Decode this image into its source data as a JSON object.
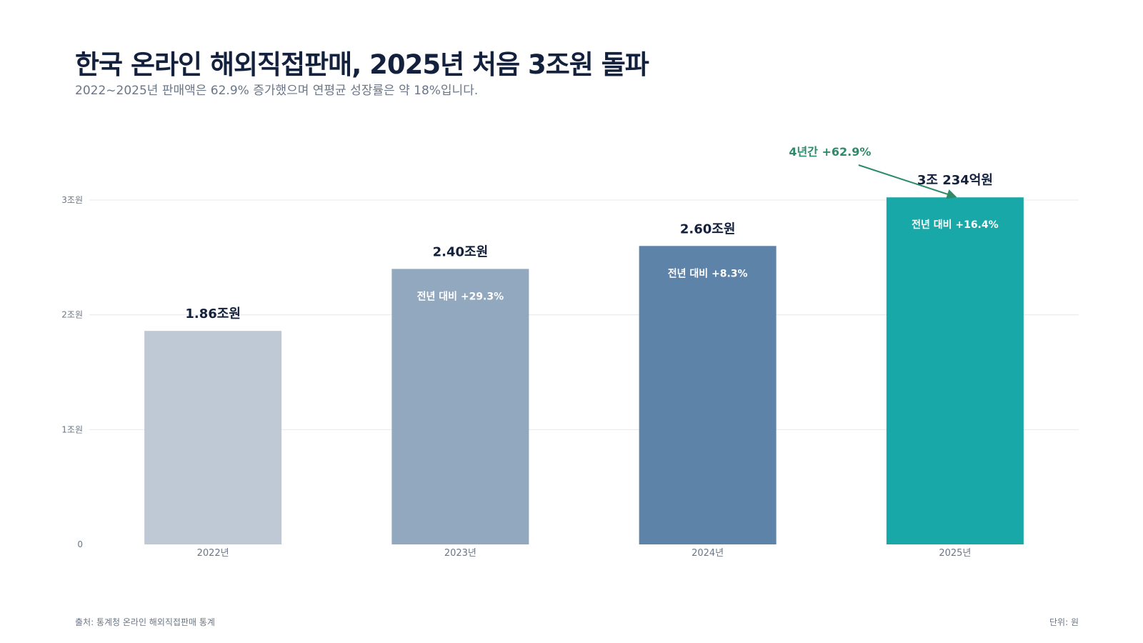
{
  "title": "한국 온라인 해외직접판매, 2025년 처음 3조원 돌파",
  "subtitle": "2022~2025년 판매액은 62.9% 증가했으며 연평균 성장률은 약 18%입니다.",
  "footer": {
    "source": "출처: 통계청 온라인 해외직접판매 통계",
    "unit": "단위: 원"
  },
  "chart_data": {
    "type": "bar",
    "categories": [
      "2022년",
      "2023년",
      "2024년",
      "2025년"
    ],
    "values": [
      1.86,
      2.4,
      2.6,
      3.0234
    ],
    "value_labels": [
      "1.86조원",
      "2.40조원",
      "2.60조원",
      "3조 234억원"
    ],
    "inner_labels": [
      "",
      "전년 대비 +29.3%",
      "전년 대비 +8.3%",
      "전년 대비 +16.4%"
    ],
    "bar_colors": [
      "#bfc9d5",
      "#92a8bf",
      "#5e83a8",
      "#19a8a8"
    ],
    "y_ticks": [
      0,
      1,
      2,
      3
    ],
    "y_tick_labels": [
      "0",
      "1조원",
      "2조원",
      "3조원"
    ],
    "ylim": [
      0,
      3.0
    ],
    "grid": true,
    "annotation": {
      "text": "4년간 +62.9%",
      "color": "#2e8b6a",
      "target_index": 3
    },
    "colors": {
      "value_label": "#14213d",
      "inner_label": "#ffffff",
      "axis_text": "#6b7686",
      "grid": "#e6e8ec"
    }
  }
}
